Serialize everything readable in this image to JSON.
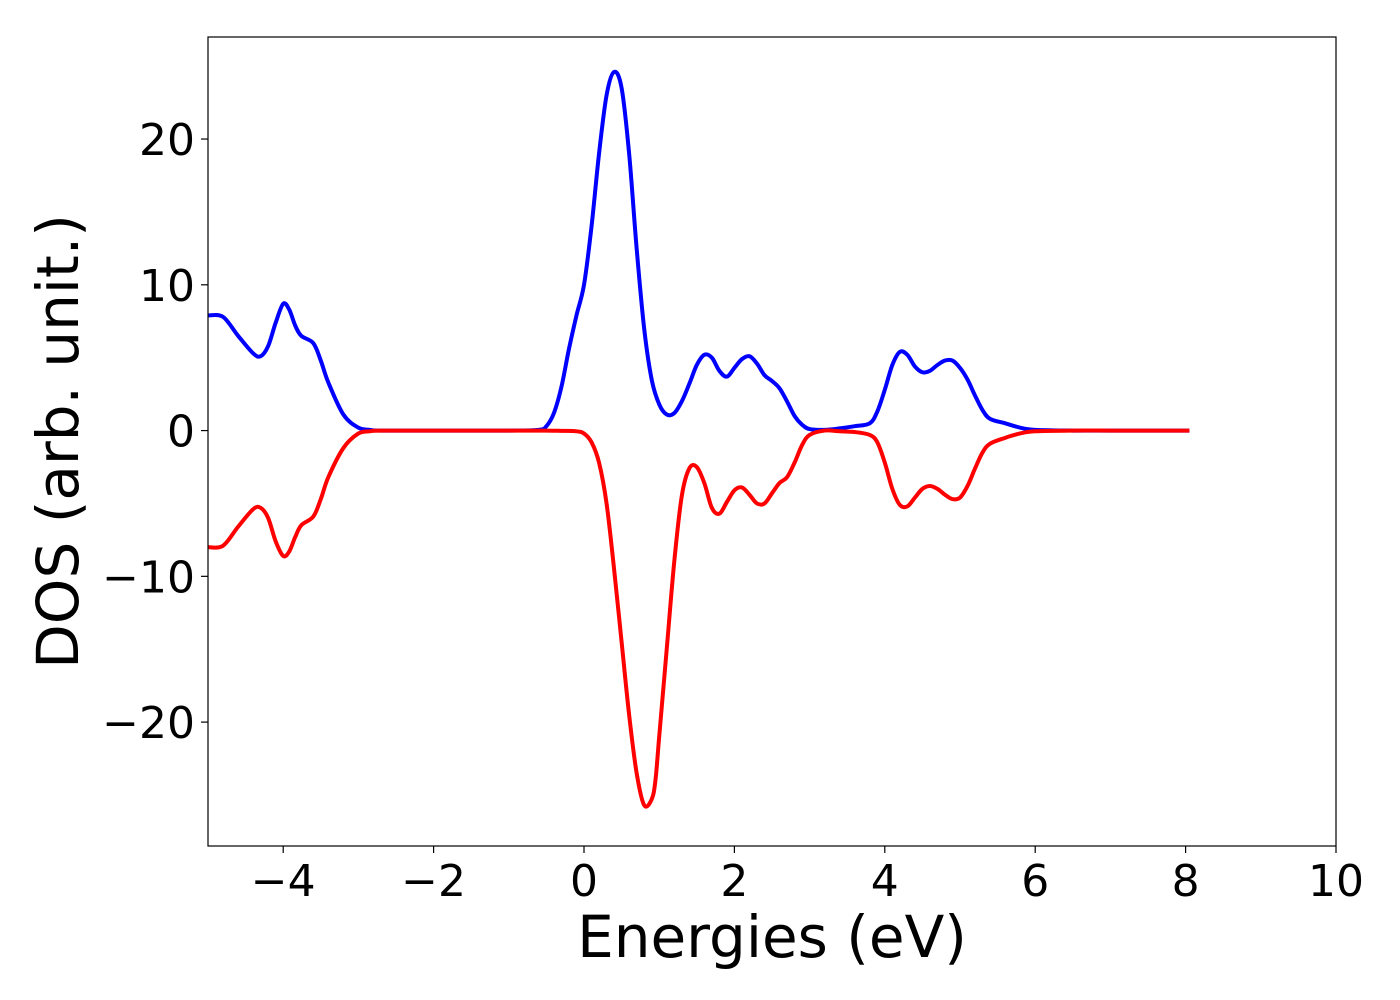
{
  "chart_data": {
    "type": "line",
    "title": "",
    "xlabel": "Energies (eV)",
    "ylabel": "DOS (arb. unit.)",
    "xlim": [
      -5,
      10
    ],
    "ylim": [
      -28.5,
      27
    ],
    "xticks": [
      -4,
      -2,
      0,
      2,
      4,
      6,
      8,
      10
    ],
    "xtick_labels": [
      "−4",
      "−2",
      "0",
      "2",
      "4",
      "6",
      "8",
      "10"
    ],
    "yticks": [
      -20,
      -10,
      0,
      10,
      20
    ],
    "ytick_labels": [
      "−20",
      "−10",
      "0",
      "10",
      "20"
    ],
    "grid": false,
    "legend": "none",
    "series": [
      {
        "color": "#0000ff",
        "x": [
          -5,
          -4.8,
          -4.6,
          -4.4,
          -4.3,
          -4.2,
          -4.1,
          -4.0,
          -3.92,
          -3.84,
          -3.76,
          -3.6,
          -3.5,
          -3.4,
          -3.2,
          -3.0,
          -2.85,
          -2.7,
          -2.0,
          -1.0,
          -0.6,
          -0.5,
          -0.4,
          -0.3,
          -0.2,
          -0.1,
          0.0,
          0.1,
          0.2,
          0.3,
          0.4,
          0.5,
          0.6,
          0.7,
          0.8,
          0.9,
          1.0,
          1.1,
          1.2,
          1.3,
          1.4,
          1.5,
          1.6,
          1.7,
          1.8,
          1.9,
          2.0,
          2.1,
          2.2,
          2.3,
          2.4,
          2.5,
          2.6,
          2.7,
          2.8,
          2.9,
          3.0,
          3.2,
          3.4,
          3.6,
          3.8,
          3.9,
          4.0,
          4.1,
          4.2,
          4.3,
          4.4,
          4.5,
          4.6,
          4.7,
          4.8,
          4.9,
          5.0,
          5.1,
          5.2,
          5.3,
          5.4,
          5.6,
          5.8,
          6.0,
          6.5,
          7.0,
          7.5,
          8.05
        ],
        "values": [
          7.9,
          7.8,
          6.5,
          5.3,
          5.1,
          5.8,
          7.4,
          8.7,
          8.3,
          7.2,
          6.5,
          6.0,
          4.8,
          3.3,
          1.1,
          0.2,
          0.05,
          0.0,
          0.0,
          0.0,
          0.05,
          0.3,
          1.2,
          3.0,
          5.6,
          7.9,
          10.0,
          14.0,
          19.0,
          23.0,
          24.6,
          23.5,
          19.0,
          12.5,
          7.0,
          3.5,
          1.8,
          1.1,
          1.2,
          2.0,
          3.2,
          4.5,
          5.2,
          5.0,
          4.1,
          3.7,
          4.3,
          4.9,
          5.1,
          4.6,
          3.8,
          3.4,
          2.9,
          2.0,
          1.0,
          0.4,
          0.1,
          0.05,
          0.15,
          0.3,
          0.5,
          1.3,
          2.8,
          4.5,
          5.4,
          5.2,
          4.4,
          4.0,
          4.1,
          4.5,
          4.8,
          4.8,
          4.3,
          3.5,
          2.4,
          1.4,
          0.8,
          0.5,
          0.2,
          0.05,
          0.0,
          0.0,
          0.0,
          0.0
        ]
      },
      {
        "color": "#ff0000",
        "x": [
          -5,
          -4.8,
          -4.6,
          -4.4,
          -4.3,
          -4.2,
          -4.1,
          -4.0,
          -3.92,
          -3.84,
          -3.76,
          -3.6,
          -3.5,
          -3.4,
          -3.2,
          -3.0,
          -2.85,
          -2.7,
          -2.0,
          -1.0,
          -0.5,
          -0.3,
          -0.1,
          0.0,
          0.1,
          0.2,
          0.3,
          0.4,
          0.5,
          0.6,
          0.7,
          0.8,
          0.9,
          0.95,
          1.0,
          1.1,
          1.2,
          1.3,
          1.4,
          1.5,
          1.6,
          1.7,
          1.8,
          1.9,
          2.0,
          2.1,
          2.2,
          2.3,
          2.4,
          2.5,
          2.6,
          2.7,
          2.8,
          2.9,
          3.0,
          3.2,
          3.4,
          3.6,
          3.8,
          3.9,
          4.0,
          4.1,
          4.2,
          4.3,
          4.4,
          4.5,
          4.6,
          4.7,
          4.8,
          4.9,
          5.0,
          5.1,
          5.2,
          5.3,
          5.4,
          5.6,
          5.8,
          6.0,
          6.5,
          7.0,
          7.5,
          8.05
        ],
        "values": [
          -8.0,
          -7.9,
          -6.6,
          -5.4,
          -5.3,
          -6.0,
          -7.6,
          -8.6,
          -8.3,
          -7.3,
          -6.5,
          -5.9,
          -4.7,
          -3.2,
          -1.2,
          -0.2,
          -0.05,
          0.0,
          0.0,
          0.0,
          0.0,
          -0.02,
          -0.05,
          -0.2,
          -0.8,
          -2.2,
          -5.0,
          -9.5,
          -14.5,
          -19.5,
          -23.5,
          -25.7,
          -25.3,
          -24.0,
          -21.0,
          -15.0,
          -9.0,
          -4.5,
          -2.6,
          -2.5,
          -3.6,
          -5.3,
          -5.7,
          -4.9,
          -4.1,
          -3.9,
          -4.4,
          -5.0,
          -5.0,
          -4.3,
          -3.6,
          -3.2,
          -2.2,
          -1.0,
          -0.3,
          0.0,
          -0.05,
          -0.1,
          -0.3,
          -0.8,
          -2.2,
          -4.0,
          -5.1,
          -5.2,
          -4.6,
          -4.0,
          -3.8,
          -4.0,
          -4.4,
          -4.7,
          -4.6,
          -3.8,
          -2.6,
          -1.5,
          -0.9,
          -0.5,
          -0.2,
          -0.05,
          0.0,
          0.0,
          0.0,
          0.0
        ]
      }
    ]
  }
}
